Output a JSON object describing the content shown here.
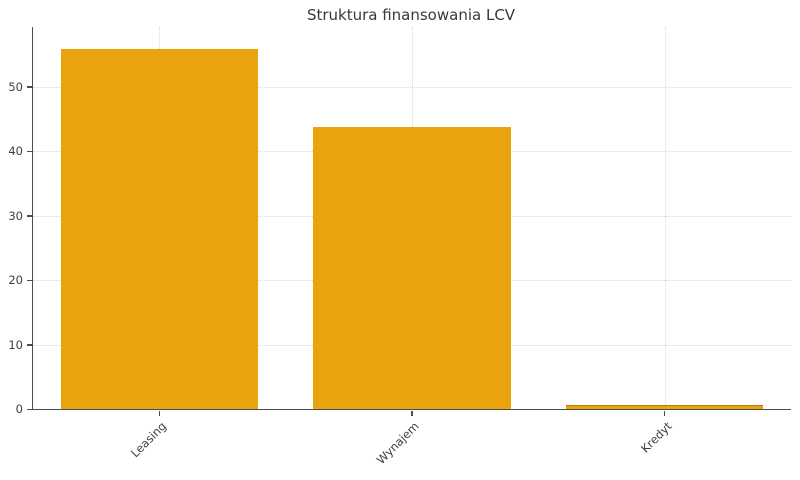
{
  "chart_data": {
    "type": "bar",
    "title": "Struktura finansowania LCV",
    "categories": [
      "Leasing",
      "Wynajem",
      "Kredyt"
    ],
    "values": [
      55.9,
      43.8,
      0.5
    ],
    "xlabel": "",
    "ylabel": "",
    "ylim": [
      0,
      59.3
    ],
    "yticks": [
      0,
      10,
      20,
      30,
      40,
      50
    ],
    "bar_color": "#E8A30D",
    "bar_edge_color": "#b07d06",
    "grid": "dotted, horizontal at yticks and vertical at category centers",
    "legend_position": "none",
    "x_tick_rotation_deg": 45,
    "spine_color": "#4c4c4c",
    "tick_label_color": "#3f3f3f",
    "title_color": "#35393f",
    "background_color": "#ffffff"
  }
}
